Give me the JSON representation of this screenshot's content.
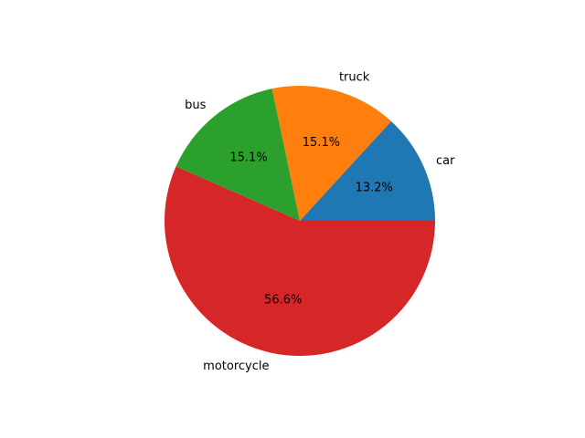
{
  "chart_data": {
    "type": "pie",
    "categories": [
      "car",
      "truck",
      "bus",
      "motorcycle"
    ],
    "values": [
      13.2,
      15.1,
      15.1,
      56.6
    ],
    "value_labels": [
      "13.2%",
      "15.1%",
      "15.1%",
      "56.6%"
    ],
    "colors": [
      "#1f77b4",
      "#ff7f0e",
      "#2ca02c",
      "#d62728"
    ],
    "start_angle_deg": 0,
    "direction": "counterclockwise",
    "title": "",
    "legend": "none"
  }
}
